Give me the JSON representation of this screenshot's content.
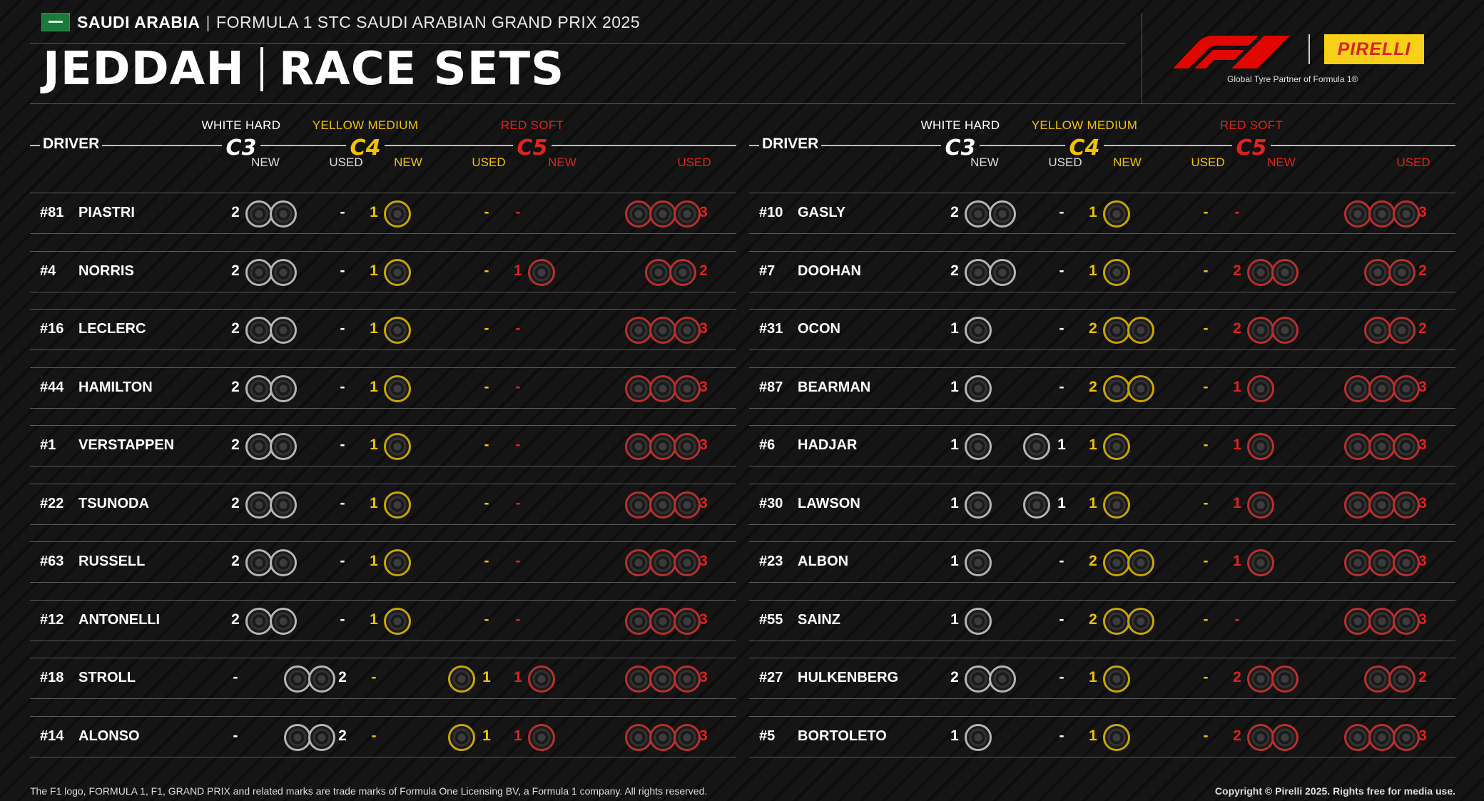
{
  "header": {
    "country": "SAUDI ARABIA",
    "event": "FORMULA 1 STC SAUDI ARABIAN GRAND PRIX 2025",
    "title_left": "JEDDAH",
    "title_right": "RACE SETS",
    "pirelli": "PIRELLI",
    "partner": "Global Tyre Partner of Formula 1®"
  },
  "columns": {
    "driver": "DRIVER",
    "new": "NEW",
    "used": "USED",
    "hard_name": "WHITE HARD",
    "hard_code": "C3",
    "medium_name": "YELLOW MEDIUM",
    "medium_code": "C4",
    "soft_name": "RED SOFT",
    "soft_code": "C5"
  },
  "colors": {
    "hard": "#ffffff",
    "medium": "#f2c200",
    "soft": "#e0231d"
  },
  "drivers_left": [
    {
      "num": "#81",
      "name": "PIASTRI",
      "hn": "2",
      "hu": "-",
      "mn": "1",
      "mu": "-",
      "sn": "-",
      "su": "3"
    },
    {
      "num": "#4",
      "name": "NORRIS",
      "hn": "2",
      "hu": "-",
      "mn": "1",
      "mu": "-",
      "sn": "1",
      "su": "2"
    },
    {
      "num": "#16",
      "name": "LECLERC",
      "hn": "2",
      "hu": "-",
      "mn": "1",
      "mu": "-",
      "sn": "-",
      "su": "3"
    },
    {
      "num": "#44",
      "name": "HAMILTON",
      "hn": "2",
      "hu": "-",
      "mn": "1",
      "mu": "-",
      "sn": "-",
      "su": "3"
    },
    {
      "num": "#1",
      "name": "VERSTAPPEN",
      "hn": "2",
      "hu": "-",
      "mn": "1",
      "mu": "-",
      "sn": "-",
      "su": "3"
    },
    {
      "num": "#22",
      "name": "TSUNODA",
      "hn": "2",
      "hu": "-",
      "mn": "1",
      "mu": "-",
      "sn": "-",
      "su": "3"
    },
    {
      "num": "#63",
      "name": "RUSSELL",
      "hn": "2",
      "hu": "-",
      "mn": "1",
      "mu": "-",
      "sn": "-",
      "su": "3"
    },
    {
      "num": "#12",
      "name": "ANTONELLI",
      "hn": "2",
      "hu": "-",
      "mn": "1",
      "mu": "-",
      "sn": "-",
      "su": "3"
    },
    {
      "num": "#18",
      "name": "STROLL",
      "hn": "-",
      "hu": "2",
      "mn": "-",
      "mu": "1",
      "sn": "1",
      "su": "3"
    },
    {
      "num": "#14",
      "name": "ALONSO",
      "hn": "-",
      "hu": "2",
      "mn": "-",
      "mu": "1",
      "sn": "1",
      "su": "3"
    }
  ],
  "drivers_right": [
    {
      "num": "#10",
      "name": "GASLY",
      "hn": "2",
      "hu": "-",
      "mn": "1",
      "mu": "-",
      "sn": "-",
      "su": "3"
    },
    {
      "num": "#7",
      "name": "DOOHAN",
      "hn": "2",
      "hu": "-",
      "mn": "1",
      "mu": "-",
      "sn": "2",
      "su": "2"
    },
    {
      "num": "#31",
      "name": "OCON",
      "hn": "1",
      "hu": "-",
      "mn": "2",
      "mu": "-",
      "sn": "2",
      "su": "2"
    },
    {
      "num": "#87",
      "name": "BEARMAN",
      "hn": "1",
      "hu": "-",
      "mn": "2",
      "mu": "-",
      "sn": "1",
      "su": "3"
    },
    {
      "num": "#6",
      "name": "HADJAR",
      "hn": "1",
      "hu": "1",
      "mn": "1",
      "mu": "-",
      "sn": "1",
      "su": "3"
    },
    {
      "num": "#30",
      "name": "LAWSON",
      "hn": "1",
      "hu": "1",
      "mn": "1",
      "mu": "-",
      "sn": "1",
      "su": "3"
    },
    {
      "num": "#23",
      "name": "ALBON",
      "hn": "1",
      "hu": "-",
      "mn": "2",
      "mu": "-",
      "sn": "1",
      "su": "3"
    },
    {
      "num": "#55",
      "name": "SAINZ",
      "hn": "1",
      "hu": "-",
      "mn": "2",
      "mu": "-",
      "sn": "-",
      "su": "3"
    },
    {
      "num": "#27",
      "name": "HULKENBERG",
      "hn": "2",
      "hu": "-",
      "mn": "1",
      "mu": "-",
      "sn": "2",
      "su": "2"
    },
    {
      "num": "#5",
      "name": "BORTOLETO",
      "hn": "1",
      "hu": "-",
      "mn": "1",
      "mu": "-",
      "sn": "2",
      "su": "3"
    }
  ],
  "footer": {
    "left": "The F1 logo, FORMULA 1, F1, GRAND PRIX and related marks are trade marks of Formula One Licensing BV, a Formula 1 company. All rights reserved.",
    "right": "Copyright © Pirelli 2025. Rights free for media use."
  }
}
